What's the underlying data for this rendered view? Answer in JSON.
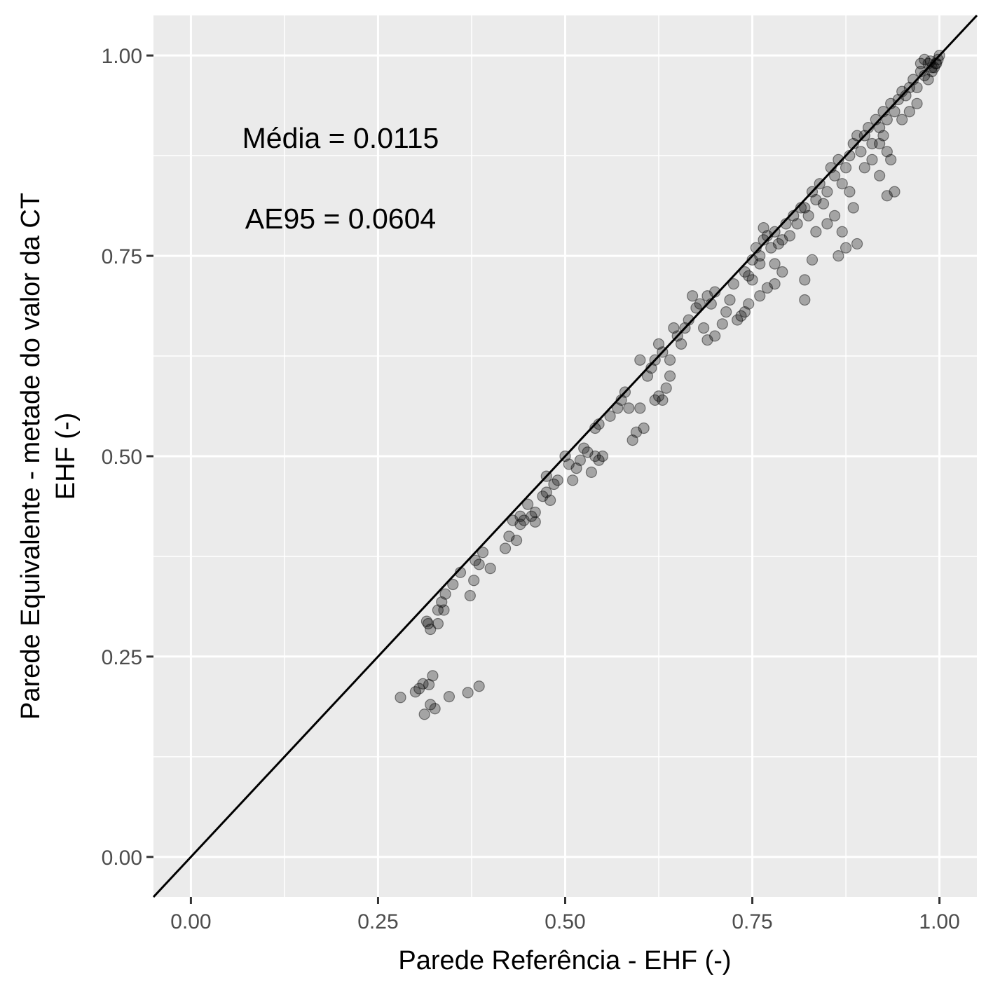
{
  "chart_data": {
    "type": "scatter",
    "title": "",
    "xlabel": "Parede Referência - EHF (-)",
    "ylabel_lines": [
      "Parede Equivalente - metade do valor da CT",
      "EHF (-)"
    ],
    "xlim": [
      -0.05,
      1.05
    ],
    "ylim": [
      -0.05,
      1.05
    ],
    "x_ticks": [
      0,
      0.25,
      0.5,
      0.75,
      1
    ],
    "x_tick_labels": [
      "0.00",
      "0.25",
      "0.50",
      "0.75",
      "1.00"
    ],
    "y_ticks": [
      0,
      0.25,
      0.5,
      0.75,
      1
    ],
    "y_tick_labels": [
      "0.00",
      "0.25",
      "0.50",
      "0.75",
      "1.00"
    ],
    "grid": true,
    "reference_line": {
      "slope": 1,
      "intercept": 0,
      "color": "#000000"
    },
    "point_color": "#000000",
    "point_opacity": 0.3,
    "annotations": [
      "Média = 0.0115",
      "AE95 = 0.0604"
    ],
    "points": [
      [
        0.28,
        0.199
      ],
      [
        0.3,
        0.206
      ],
      [
        0.305,
        0.21
      ],
      [
        0.31,
        0.216
      ],
      [
        0.312,
        0.178
      ],
      [
        0.318,
        0.215
      ],
      [
        0.32,
        0.19
      ],
      [
        0.323,
        0.226
      ],
      [
        0.326,
        0.185
      ],
      [
        0.345,
        0.2
      ],
      [
        0.37,
        0.205
      ],
      [
        0.385,
        0.213
      ],
      [
        0.315,
        0.294
      ],
      [
        0.32,
        0.284
      ],
      [
        0.317,
        0.291
      ],
      [
        0.33,
        0.291
      ],
      [
        0.33,
        0.308
      ],
      [
        0.335,
        0.318
      ],
      [
        0.338,
        0.308
      ],
      [
        0.34,
        0.328
      ],
      [
        0.35,
        0.34
      ],
      [
        0.36,
        0.355
      ],
      [
        0.373,
        0.326
      ],
      [
        0.378,
        0.345
      ],
      [
        0.38,
        0.37
      ],
      [
        0.385,
        0.365
      ],
      [
        0.39,
        0.38
      ],
      [
        0.4,
        0.36
      ],
      [
        0.42,
        0.385
      ],
      [
        0.425,
        0.4
      ],
      [
        0.43,
        0.42
      ],
      [
        0.435,
        0.395
      ],
      [
        0.44,
        0.425
      ],
      [
        0.44,
        0.415
      ],
      [
        0.445,
        0.42
      ],
      [
        0.45,
        0.44
      ],
      [
        0.455,
        0.425
      ],
      [
        0.46,
        0.43
      ],
      [
        0.46,
        0.418
      ],
      [
        0.47,
        0.45
      ],
      [
        0.475,
        0.455
      ],
      [
        0.475,
        0.475
      ],
      [
        0.48,
        0.445
      ],
      [
        0.485,
        0.465
      ],
      [
        0.49,
        0.47
      ],
      [
        0.5,
        0.5
      ],
      [
        0.505,
        0.49
      ],
      [
        0.51,
        0.47
      ],
      [
        0.515,
        0.485
      ],
      [
        0.52,
        0.495
      ],
      [
        0.525,
        0.51
      ],
      [
        0.53,
        0.505
      ],
      [
        0.535,
        0.48
      ],
      [
        0.54,
        0.5
      ],
      [
        0.545,
        0.495
      ],
      [
        0.55,
        0.5
      ],
      [
        0.54,
        0.535
      ],
      [
        0.545,
        0.54
      ],
      [
        0.56,
        0.55
      ],
      [
        0.57,
        0.56
      ],
      [
        0.575,
        0.57
      ],
      [
        0.58,
        0.58
      ],
      [
        0.585,
        0.56
      ],
      [
        0.59,
        0.52
      ],
      [
        0.595,
        0.53
      ],
      [
        0.6,
        0.56
      ],
      [
        0.605,
        0.535
      ],
      [
        0.6,
        0.62
      ],
      [
        0.61,
        0.6
      ],
      [
        0.615,
        0.61
      ],
      [
        0.62,
        0.62
      ],
      [
        0.625,
        0.64
      ],
      [
        0.63,
        0.63
      ],
      [
        0.62,
        0.57
      ],
      [
        0.625,
        0.575
      ],
      [
        0.63,
        0.57
      ],
      [
        0.635,
        0.585
      ],
      [
        0.64,
        0.6
      ],
      [
        0.64,
        0.62
      ],
      [
        0.645,
        0.66
      ],
      [
        0.65,
        0.65
      ],
      [
        0.655,
        0.64
      ],
      [
        0.66,
        0.66
      ],
      [
        0.665,
        0.67
      ],
      [
        0.67,
        0.7
      ],
      [
        0.675,
        0.685
      ],
      [
        0.68,
        0.69
      ],
      [
        0.685,
        0.66
      ],
      [
        0.69,
        0.7
      ],
      [
        0.695,
        0.69
      ],
      [
        0.7,
        0.705
      ],
      [
        0.7,
        0.65
      ],
      [
        0.69,
        0.645
      ],
      [
        0.71,
        0.665
      ],
      [
        0.715,
        0.68
      ],
      [
        0.72,
        0.695
      ],
      [
        0.725,
        0.715
      ],
      [
        0.73,
        0.67
      ],
      [
        0.735,
        0.675
      ],
      [
        0.74,
        0.68
      ],
      [
        0.745,
        0.725
      ],
      [
        0.74,
        0.73
      ],
      [
        0.75,
        0.745
      ],
      [
        0.755,
        0.76
      ],
      [
        0.76,
        0.75
      ],
      [
        0.765,
        0.77
      ],
      [
        0.765,
        0.785
      ],
      [
        0.77,
        0.775
      ],
      [
        0.775,
        0.76
      ],
      [
        0.78,
        0.78
      ],
      [
        0.78,
        0.74
      ],
      [
        0.785,
        0.765
      ],
      [
        0.79,
        0.77
      ],
      [
        0.795,
        0.79
      ],
      [
        0.8,
        0.775
      ],
      [
        0.805,
        0.8
      ],
      [
        0.81,
        0.79
      ],
      [
        0.815,
        0.81
      ],
      [
        0.76,
        0.7
      ],
      [
        0.77,
        0.71
      ],
      [
        0.78,
        0.715
      ],
      [
        0.79,
        0.73
      ],
      [
        0.75,
        0.72
      ],
      [
        0.745,
        0.69
      ],
      [
        0.76,
        0.74
      ],
      [
        0.82,
        0.72
      ],
      [
        0.82,
        0.81
      ],
      [
        0.825,
        0.8
      ],
      [
        0.83,
        0.83
      ],
      [
        0.835,
        0.82
      ],
      [
        0.84,
        0.84
      ],
      [
        0.845,
        0.815
      ],
      [
        0.85,
        0.83
      ],
      [
        0.855,
        0.86
      ],
      [
        0.86,
        0.85
      ],
      [
        0.865,
        0.87
      ],
      [
        0.87,
        0.84
      ],
      [
        0.875,
        0.86
      ],
      [
        0.88,
        0.875
      ],
      [
        0.835,
        0.78
      ],
      [
        0.85,
        0.79
      ],
      [
        0.86,
        0.8
      ],
      [
        0.87,
        0.78
      ],
      [
        0.88,
        0.83
      ],
      [
        0.885,
        0.81
      ],
      [
        0.82,
        0.695
      ],
      [
        0.865,
        0.75
      ],
      [
        0.875,
        0.76
      ],
      [
        0.89,
        0.765
      ],
      [
        0.83,
        0.745
      ],
      [
        0.885,
        0.89
      ],
      [
        0.89,
        0.9
      ],
      [
        0.895,
        0.88
      ],
      [
        0.9,
        0.9
      ],
      [
        0.905,
        0.91
      ],
      [
        0.91,
        0.89
      ],
      [
        0.915,
        0.92
      ],
      [
        0.92,
        0.91
      ],
      [
        0.925,
        0.93
      ],
      [
        0.93,
        0.92
      ],
      [
        0.935,
        0.94
      ],
      [
        0.94,
        0.93
      ],
      [
        0.945,
        0.945
      ],
      [
        0.95,
        0.955
      ],
      [
        0.955,
        0.95
      ],
      [
        0.96,
        0.96
      ],
      [
        0.965,
        0.97
      ],
      [
        0.97,
        0.96
      ],
      [
        0.975,
        0.98
      ],
      [
        0.98,
        0.975
      ],
      [
        0.9,
        0.86
      ],
      [
        0.91,
        0.87
      ],
      [
        0.92,
        0.85
      ],
      [
        0.93,
        0.88
      ],
      [
        0.935,
        0.87
      ],
      [
        0.94,
        0.83
      ],
      [
        0.93,
        0.825
      ],
      [
        0.92,
        0.89
      ],
      [
        0.925,
        0.9
      ],
      [
        0.95,
        0.92
      ],
      [
        0.96,
        0.93
      ],
      [
        0.97,
        0.94
      ],
      [
        0.985,
        0.97
      ],
      [
        0.99,
        0.985
      ],
      [
        0.995,
        0.99
      ],
      [
        1.0,
        1.0
      ],
      [
        0.998,
        0.995
      ],
      [
        0.996,
        0.99
      ],
      [
        0.993,
        0.985
      ],
      [
        0.99,
        0.98
      ],
      [
        0.985,
        0.99
      ],
      [
        0.988,
        0.993
      ],
      [
        0.975,
        0.99
      ],
      [
        0.98,
        0.995
      ]
    ]
  }
}
